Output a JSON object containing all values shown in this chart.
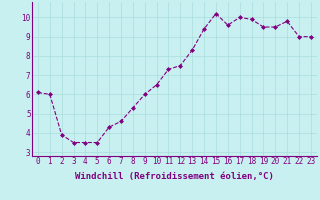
{
  "x": [
    0,
    1,
    2,
    3,
    4,
    5,
    6,
    7,
    8,
    9,
    10,
    11,
    12,
    13,
    14,
    15,
    16,
    17,
    18,
    19,
    20,
    21,
    22,
    23
  ],
  "y": [
    6.1,
    6.0,
    3.9,
    3.5,
    3.5,
    3.5,
    4.3,
    4.6,
    5.3,
    6.0,
    6.5,
    7.3,
    7.5,
    8.3,
    9.4,
    10.2,
    9.6,
    10.0,
    9.9,
    9.5,
    9.5,
    9.8,
    9.0,
    9.0
  ],
  "line_color": "#800080",
  "marker": "D",
  "marker_size": 2.0,
  "bg_color": "#c8f0f0",
  "grid_color": "#aadddd",
  "xlabel": "Windchill (Refroidissement éolien,°C)",
  "xlim": [
    -0.5,
    23.5
  ],
  "ylim": [
    2.8,
    10.8
  ],
  "yticks": [
    3,
    4,
    5,
    6,
    7,
    8,
    9,
    10
  ],
  "xticks": [
    0,
    1,
    2,
    3,
    4,
    5,
    6,
    7,
    8,
    9,
    10,
    11,
    12,
    13,
    14,
    15,
    16,
    17,
    18,
    19,
    20,
    21,
    22,
    23
  ],
  "tick_label_fontsize": 5.5,
  "xlabel_fontsize": 6.5,
  "axis_label_color": "#800080",
  "tick_color": "#800080",
  "spine_color": "#800080"
}
